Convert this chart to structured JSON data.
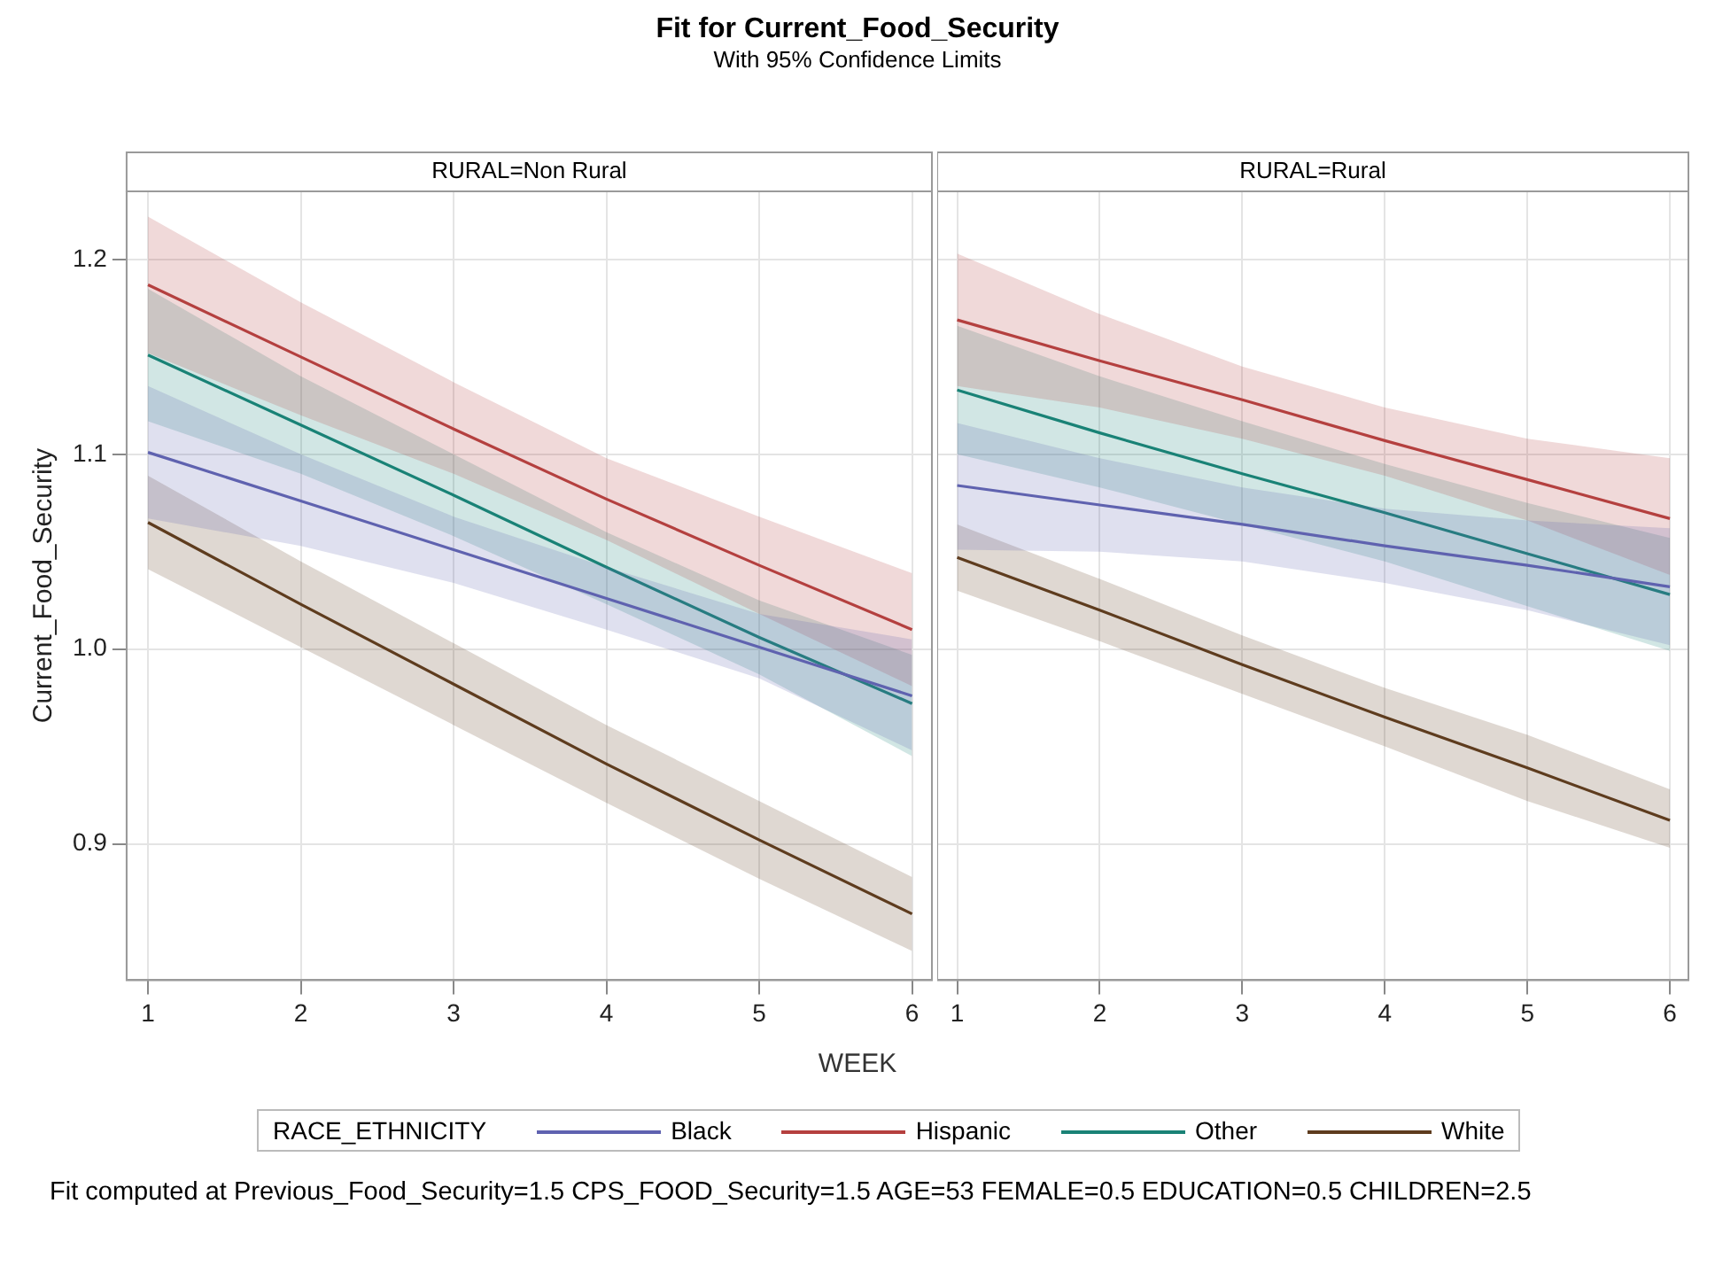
{
  "chart_data": [
    {
      "type": "line",
      "title": "Fit for Current_Food_Security",
      "subtitle": "With 95% Confidence Limits",
      "xlabel": "WEEK",
      "ylabel": "Current_Food_Security",
      "legend_title": "RACE_ETHNICITY",
      "legend": "bottom",
      "grid": true,
      "annotations": [
        "RURAL=Non Rural",
        "Fit computed at Previous_Food_Security=1.5 CPS_FOOD_Security=1.5 AGE=53 FEMALE=0.5 EDUCATION=0.5 CHILDREN=2.5"
      ],
      "x": [
        1,
        2,
        3,
        4,
        5,
        6
      ],
      "xlim": [
        0.86,
        6.13
      ],
      "xticks": [
        1,
        2,
        3,
        4,
        5,
        6
      ],
      "ylim": [
        0.83,
        1.235
      ],
      "yticks": [
        0.9,
        {
          "value": 1,
          "label": "1.0"
        },
        1.1,
        1.2
      ],
      "series": [
        {
          "name": "Black",
          "color": "#5f62b0",
          "values": [
            1.101,
            1.076,
            1.051,
            1.026,
            1.001,
            0.976
          ],
          "lower": [
            1.067,
            1.053,
            1.034,
            1.01,
            0.985,
            0.948
          ],
          "upper": [
            1.135,
            1.1,
            1.068,
            1.042,
            1.018,
            1.005
          ]
        },
        {
          "name": "Hispanic",
          "color": "#b5403f",
          "values": [
            1.187,
            1.15,
            1.113,
            1.077,
            1.043,
            1.01
          ],
          "lower": [
            1.152,
            1.12,
            1.09,
            1.056,
            1.018,
            0.981
          ],
          "upper": [
            1.222,
            1.178,
            1.137,
            1.098,
            1.068,
            1.039
          ]
        },
        {
          "name": "Other",
          "color": "#1a8276",
          "values": [
            1.151,
            1.115,
            1.079,
            1.042,
            1.006,
            0.972
          ],
          "lower": [
            1.117,
            1.09,
            1.058,
            1.023,
            0.987,
            0.945
          ],
          "upper": [
            1.185,
            1.14,
            1.1,
            1.06,
            1.025,
            0.997
          ]
        },
        {
          "name": "White",
          "color": "#5e3c1e",
          "values": [
            1.065,
            1.023,
            0.982,
            0.941,
            0.902,
            0.864
          ],
          "lower": [
            1.041,
            1.001,
            0.961,
            0.921,
            0.882,
            0.845
          ],
          "upper": [
            1.089,
            1.045,
            1.003,
            0.961,
            0.922,
            0.883
          ]
        }
      ]
    },
    {
      "type": "line",
      "grid": true,
      "tick_labels": "x",
      "annotations": [
        "RURAL=Rural"
      ],
      "x": [
        1,
        2,
        3,
        4,
        5,
        6
      ],
      "xlim": [
        0.86,
        6.13
      ],
      "xticks": [
        1,
        2,
        3,
        4,
        5,
        6
      ],
      "ylim": [
        0.83,
        1.235
      ],
      "yticks": [
        0.9,
        1,
        1.1,
        1.2
      ],
      "series": [
        {
          "color": "#5f62b0",
          "values": [
            1.084,
            1.074,
            1.064,
            1.053,
            1.043,
            1.032
          ],
          "lower": [
            1.051,
            1.05,
            1.045,
            1.034,
            1.02,
            1.002
          ],
          "upper": [
            1.116,
            1.098,
            1.083,
            1.072,
            1.066,
            1.062
          ]
        },
        {
          "color": "#b5403f",
          "values": [
            1.169,
            1.148,
            1.128,
            1.107,
            1.087,
            1.067
          ],
          "lower": [
            1.135,
            1.124,
            1.108,
            1.089,
            1.066,
            1.038
          ],
          "upper": [
            1.203,
            1.172,
            1.145,
            1.124,
            1.108,
            1.098
          ]
        },
        {
          "color": "#1a8276",
          "values": [
            1.133,
            1.111,
            1.09,
            1.07,
            1.049,
            1.028
          ],
          "lower": [
            1.1,
            1.083,
            1.064,
            1.045,
            1.022,
            0.999
          ],
          "upper": [
            1.166,
            1.14,
            1.117,
            1.095,
            1.075,
            1.057
          ]
        },
        {
          "color": "#5e3c1e",
          "values": [
            1.047,
            1.02,
            0.992,
            0.965,
            0.939,
            0.912
          ],
          "lower": [
            1.03,
            1.004,
            0.977,
            0.95,
            0.922,
            0.898
          ],
          "upper": [
            1.064,
            1.036,
            1.007,
            0.98,
            0.956,
            0.928
          ]
        }
      ]
    }
  ]
}
